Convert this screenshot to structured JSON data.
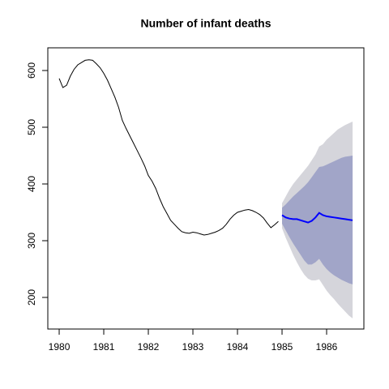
{
  "chart_data": {
    "type": "line",
    "title": "Number of infant deaths",
    "xlim": [
      1979.745,
      1986.836
    ],
    "ylim": [
      144.3,
      640
    ],
    "xticks": [
      1980,
      1981,
      1982,
      1983,
      1984,
      1985,
      1986
    ],
    "yticks": [
      200,
      300,
      400,
      500,
      600
    ],
    "bands": [
      {
        "color": "#d5d5db",
        "x": [
          1985,
          1985.083,
          1985.167,
          1985.25,
          1985.333,
          1985.417,
          1985.5,
          1985.583,
          1985.667,
          1985.75,
          1985.833,
          1985.917,
          1986,
          1986.083,
          1986.167,
          1986.25,
          1986.333,
          1986.417,
          1986.5,
          1986.583
        ],
        "lower": [
          322,
          305,
          290,
          275,
          262,
          250,
          240,
          233,
          230,
          230,
          232,
          222,
          212,
          204,
          197,
          189,
          182,
          175,
          168,
          163
        ],
        "upper": [
          366,
          378,
          390,
          400,
          408,
          416,
          424,
          432,
          442,
          452,
          466,
          470,
          478,
          484,
          490,
          496,
          500,
          504,
          507,
          510
        ]
      },
      {
        "color": "#a1a5c8",
        "x": [
          1985,
          1985.083,
          1985.167,
          1985.25,
          1985.333,
          1985.417,
          1985.5,
          1985.583,
          1985.667,
          1985.75,
          1985.833,
          1985.917,
          1986,
          1986.083,
          1986.167,
          1986.25,
          1986.333,
          1986.417,
          1986.5,
          1986.583
        ],
        "lower": [
          330,
          318,
          306,
          295,
          285,
          275,
          265,
          258,
          258,
          262,
          268,
          258,
          250,
          244,
          239,
          235,
          231,
          228,
          225,
          223
        ],
        "upper": [
          358,
          364,
          371,
          378,
          384,
          390,
          396,
          403,
          412,
          421,
          430,
          431,
          434,
          437,
          440,
          443,
          446,
          448,
          449,
          450
        ]
      }
    ],
    "series": [
      {
        "color": "#000000",
        "x": [
          1980,
          1980.083,
          1980.167,
          1980.25,
          1980.333,
          1980.417,
          1980.5,
          1980.583,
          1980.667,
          1980.75,
          1980.833,
          1980.917,
          1981,
          1981.083,
          1981.167,
          1981.25,
          1981.333,
          1981.417,
          1981.5,
          1981.583,
          1981.667,
          1981.75,
          1981.833,
          1981.917,
          1982,
          1982.083,
          1982.167,
          1982.25,
          1982.333,
          1982.417,
          1982.5,
          1982.583,
          1982.667,
          1982.75,
          1982.833,
          1982.917,
          1983,
          1983.083,
          1983.167,
          1983.25,
          1983.333,
          1983.417,
          1983.5,
          1983.583,
          1983.667,
          1983.75,
          1983.833,
          1983.917,
          1984,
          1984.083,
          1984.167,
          1984.25,
          1984.333,
          1984.417,
          1984.5,
          1984.583,
          1984.667,
          1984.75,
          1984.833,
          1984.917
        ],
        "values": [
          586,
          570,
          574,
          590,
          602,
          610,
          614,
          618,
          619,
          618,
          612,
          605,
          595,
          583,
          568,
          553,
          535,
          512,
          498,
          485,
          472,
          459,
          446,
          432,
          415,
          405,
          392,
          375,
          360,
          348,
          336,
          329,
          322,
          316,
          314,
          313,
          315,
          314,
          312,
          310,
          311,
          313,
          315,
          318,
          322,
          329,
          338,
          345,
          350,
          352,
          354,
          355,
          353,
          350,
          346,
          340,
          331,
          323,
          328,
          334
        ]
      },
      {
        "color": "#0000ff",
        "x": [
          1985,
          1985.083,
          1985.167,
          1985.25,
          1985.333,
          1985.417,
          1985.5,
          1985.583,
          1985.667,
          1985.75,
          1985.833,
          1985.917,
          1986,
          1986.083,
          1986.167,
          1986.25,
          1986.333,
          1986.417,
          1986.5,
          1986.583
        ],
        "values": [
          345,
          341,
          339,
          338,
          338,
          336,
          334,
          332,
          335,
          341,
          349,
          345,
          343,
          342,
          341,
          340,
          339,
          338,
          337,
          336
        ]
      }
    ]
  }
}
